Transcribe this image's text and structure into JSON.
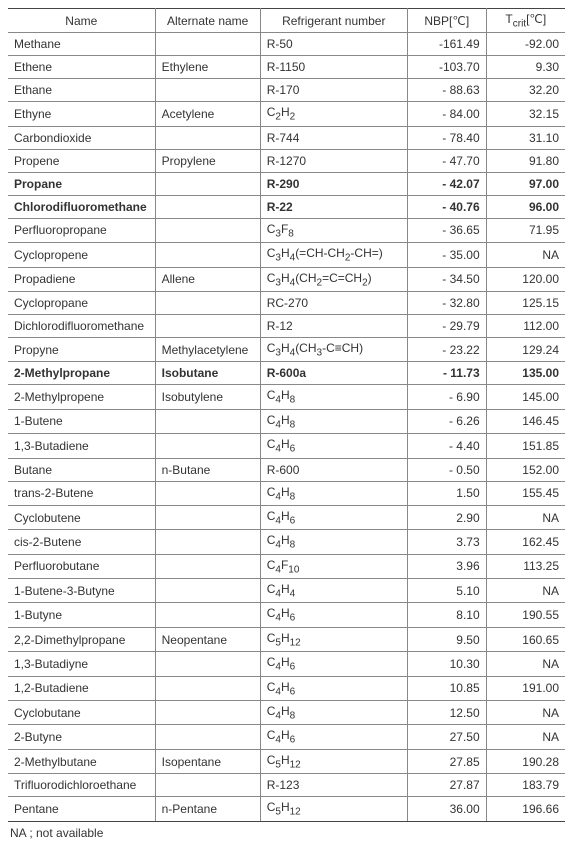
{
  "table": {
    "type": "table",
    "columns": [
      {
        "label": "Name",
        "class": "col-name",
        "align": "left"
      },
      {
        "label": "Alternate name",
        "class": "col-alt",
        "align": "left"
      },
      {
        "label": "Refrigerant number",
        "class": "col-ref",
        "align": "left"
      },
      {
        "label_html": "NBP[℃]",
        "class": "col-nbp",
        "align": "right"
      },
      {
        "label_html": "T<sub>crit</sub>[℃]",
        "class": "col-tcrit",
        "align": "right"
      }
    ],
    "rows": [
      {
        "name": "Methane",
        "alt": "",
        "ref": "R-50",
        "nbp": "-161.49",
        "tcrit": "-92.00"
      },
      {
        "name": "Ethene",
        "alt": "Ethylene",
        "ref": "R-1150",
        "nbp": "-103.70",
        "tcrit": "9.30"
      },
      {
        "name": "Ethane",
        "alt": "",
        "ref": "R-170",
        "nbp": "- 88.63",
        "tcrit": "32.20"
      },
      {
        "name": "Ethyne",
        "alt": "Acetylene",
        "ref_html": "C<sub>2</sub>H<sub>2</sub>",
        "nbp": "- 84.00",
        "tcrit": "32.15"
      },
      {
        "name": "Carbondioxide",
        "alt": "",
        "ref": "R-744",
        "nbp": "- 78.40",
        "tcrit": "31.10"
      },
      {
        "name": "Propene",
        "alt": "Propylene",
        "ref": "R-1270",
        "nbp": "- 47.70",
        "tcrit": "91.80"
      },
      {
        "name": "Propane",
        "alt": "",
        "ref": "R-290",
        "nbp": "- 42.07",
        "tcrit": "97.00",
        "bold": true
      },
      {
        "name": "Chlorodifluoromethane",
        "alt": "",
        "ref": "R-22",
        "nbp": "- 40.76",
        "tcrit": "96.00",
        "bold": true
      },
      {
        "name": "Perfluoropropane",
        "alt": "",
        "ref_html": "C<sub>3</sub>F<sub>8</sub>",
        "nbp": "- 36.65",
        "tcrit": "71.95"
      },
      {
        "name": "Cyclopropene",
        "alt": "",
        "ref_html": "C<sub>3</sub>H<sub>4</sub>(=CH-CH<sub>2</sub>-CH=)",
        "nbp": "- 35.00",
        "tcrit": "NA"
      },
      {
        "name": "Propadiene",
        "alt": "Allene",
        "ref_html": "C<sub>3</sub>H<sub>4</sub>(CH<sub>2</sub>=C=CH<sub>2</sub>)",
        "nbp": "- 34.50",
        "tcrit": "120.00"
      },
      {
        "name": "Cyclopropane",
        "alt": "",
        "ref": "RC-270",
        "nbp": "- 32.80",
        "tcrit": "125.15"
      },
      {
        "name": "Dichlorodifluoromethane",
        "alt": "",
        "ref": "R-12",
        "nbp": "- 29.79",
        "tcrit": "112.00"
      },
      {
        "name": "Propyne",
        "alt": "Methylacetylene",
        "ref_html": "C<sub>3</sub>H<sub>4</sub>(CH<sub>3</sub>-C≡CH)",
        "nbp": "- 23.22",
        "tcrit": "129.24"
      },
      {
        "name": "2-Methylpropane",
        "alt": "Isobutane",
        "ref": "R-600a",
        "nbp": "- 11.73",
        "tcrit": "135.00",
        "bold": true
      },
      {
        "name": "2-Methylpropene",
        "alt": "Isobutylene",
        "ref_html": "C<sub>4</sub>H<sub>8</sub>",
        "nbp": "-  6.90",
        "tcrit": "145.00"
      },
      {
        "name": "1-Butene",
        "alt": "",
        "ref_html": "C<sub>4</sub>H<sub>8</sub>",
        "nbp": "-  6.26",
        "tcrit": "146.45"
      },
      {
        "name": "1,3-Butadiene",
        "alt": "",
        "ref_html": "C<sub>4</sub>H<sub>6</sub>",
        "nbp": "-  4.40",
        "tcrit": "151.85"
      },
      {
        "name": "Butane",
        "alt": "n-Butane",
        "ref": "R-600",
        "nbp": "-  0.50",
        "tcrit": "152.00"
      },
      {
        "name": "trans-2-Butene",
        "alt": "",
        "ref_html": "C<sub>4</sub>H<sub>8</sub>",
        "nbp": "1.50",
        "tcrit": "155.45"
      },
      {
        "name": "Cyclobutene",
        "alt": "",
        "ref_html": "C<sub>4</sub>H<sub>6</sub>",
        "nbp": "2.90",
        "tcrit": "NA"
      },
      {
        "name": "cis-2-Butene",
        "alt": "",
        "ref_html": "C<sub>4</sub>H<sub>8</sub>",
        "nbp": "3.73",
        "tcrit": "162.45"
      },
      {
        "name": "Perfluorobutane",
        "alt": "",
        "ref_html": "C<sub>4</sub>F<sub>10</sub>",
        "nbp": "3.96",
        "tcrit": "113.25"
      },
      {
        "name": "1-Butene-3-Butyne",
        "alt": "",
        "ref_html": "C<sub>4</sub>H<sub>4</sub>",
        "nbp": "5.10",
        "tcrit": "NA"
      },
      {
        "name": "1-Butyne",
        "alt": "",
        "ref_html": "C<sub>4</sub>H<sub>6</sub>",
        "nbp": "8.10",
        "tcrit": "190.55"
      },
      {
        "name": "2,2-Dimethylpropane",
        "alt": "Neopentane",
        "ref_html": "C<sub>5</sub>H<sub>12</sub>",
        "nbp": "9.50",
        "tcrit": "160.65"
      },
      {
        "name": "1,3-Butadiyne",
        "alt": "",
        "ref_html": "C<sub>4</sub>H<sub>6</sub>",
        "nbp": "10.30",
        "tcrit": "NA"
      },
      {
        "name": "1,2-Butadiene",
        "alt": "",
        "ref_html": "C<sub>4</sub>H<sub>6</sub>",
        "nbp": "10.85",
        "tcrit": "191.00"
      },
      {
        "name": "Cyclobutane",
        "alt": "",
        "ref_html": "C<sub>4</sub>H<sub>8</sub>",
        "nbp": "12.50",
        "tcrit": "NA"
      },
      {
        "name": "2-Butyne",
        "alt": "",
        "ref_html": "C<sub>4</sub>H<sub>6</sub>",
        "nbp": "27.50",
        "tcrit": "NA"
      },
      {
        "name": "2-Methylbutane",
        "alt": "Isopentane",
        "ref_html": "C<sub>5</sub>H<sub>12</sub>",
        "nbp": "27.85",
        "tcrit": "190.28"
      },
      {
        "name": "Trifluorodichloroethane",
        "alt": "",
        "ref": "R-123",
        "nbp": "27.87",
        "tcrit": "183.79"
      },
      {
        "name": "Pentane",
        "alt": "n-Pentane",
        "ref_html": "C<sub>5</sub>H<sub>12</sub>",
        "nbp": "36.00",
        "tcrit": "196.66"
      }
    ],
    "footnote": "NA ; not available",
    "border_color": "#888888",
    "text_color": "#333333",
    "background_color": "#ffffff",
    "font_size_pt": 9
  }
}
